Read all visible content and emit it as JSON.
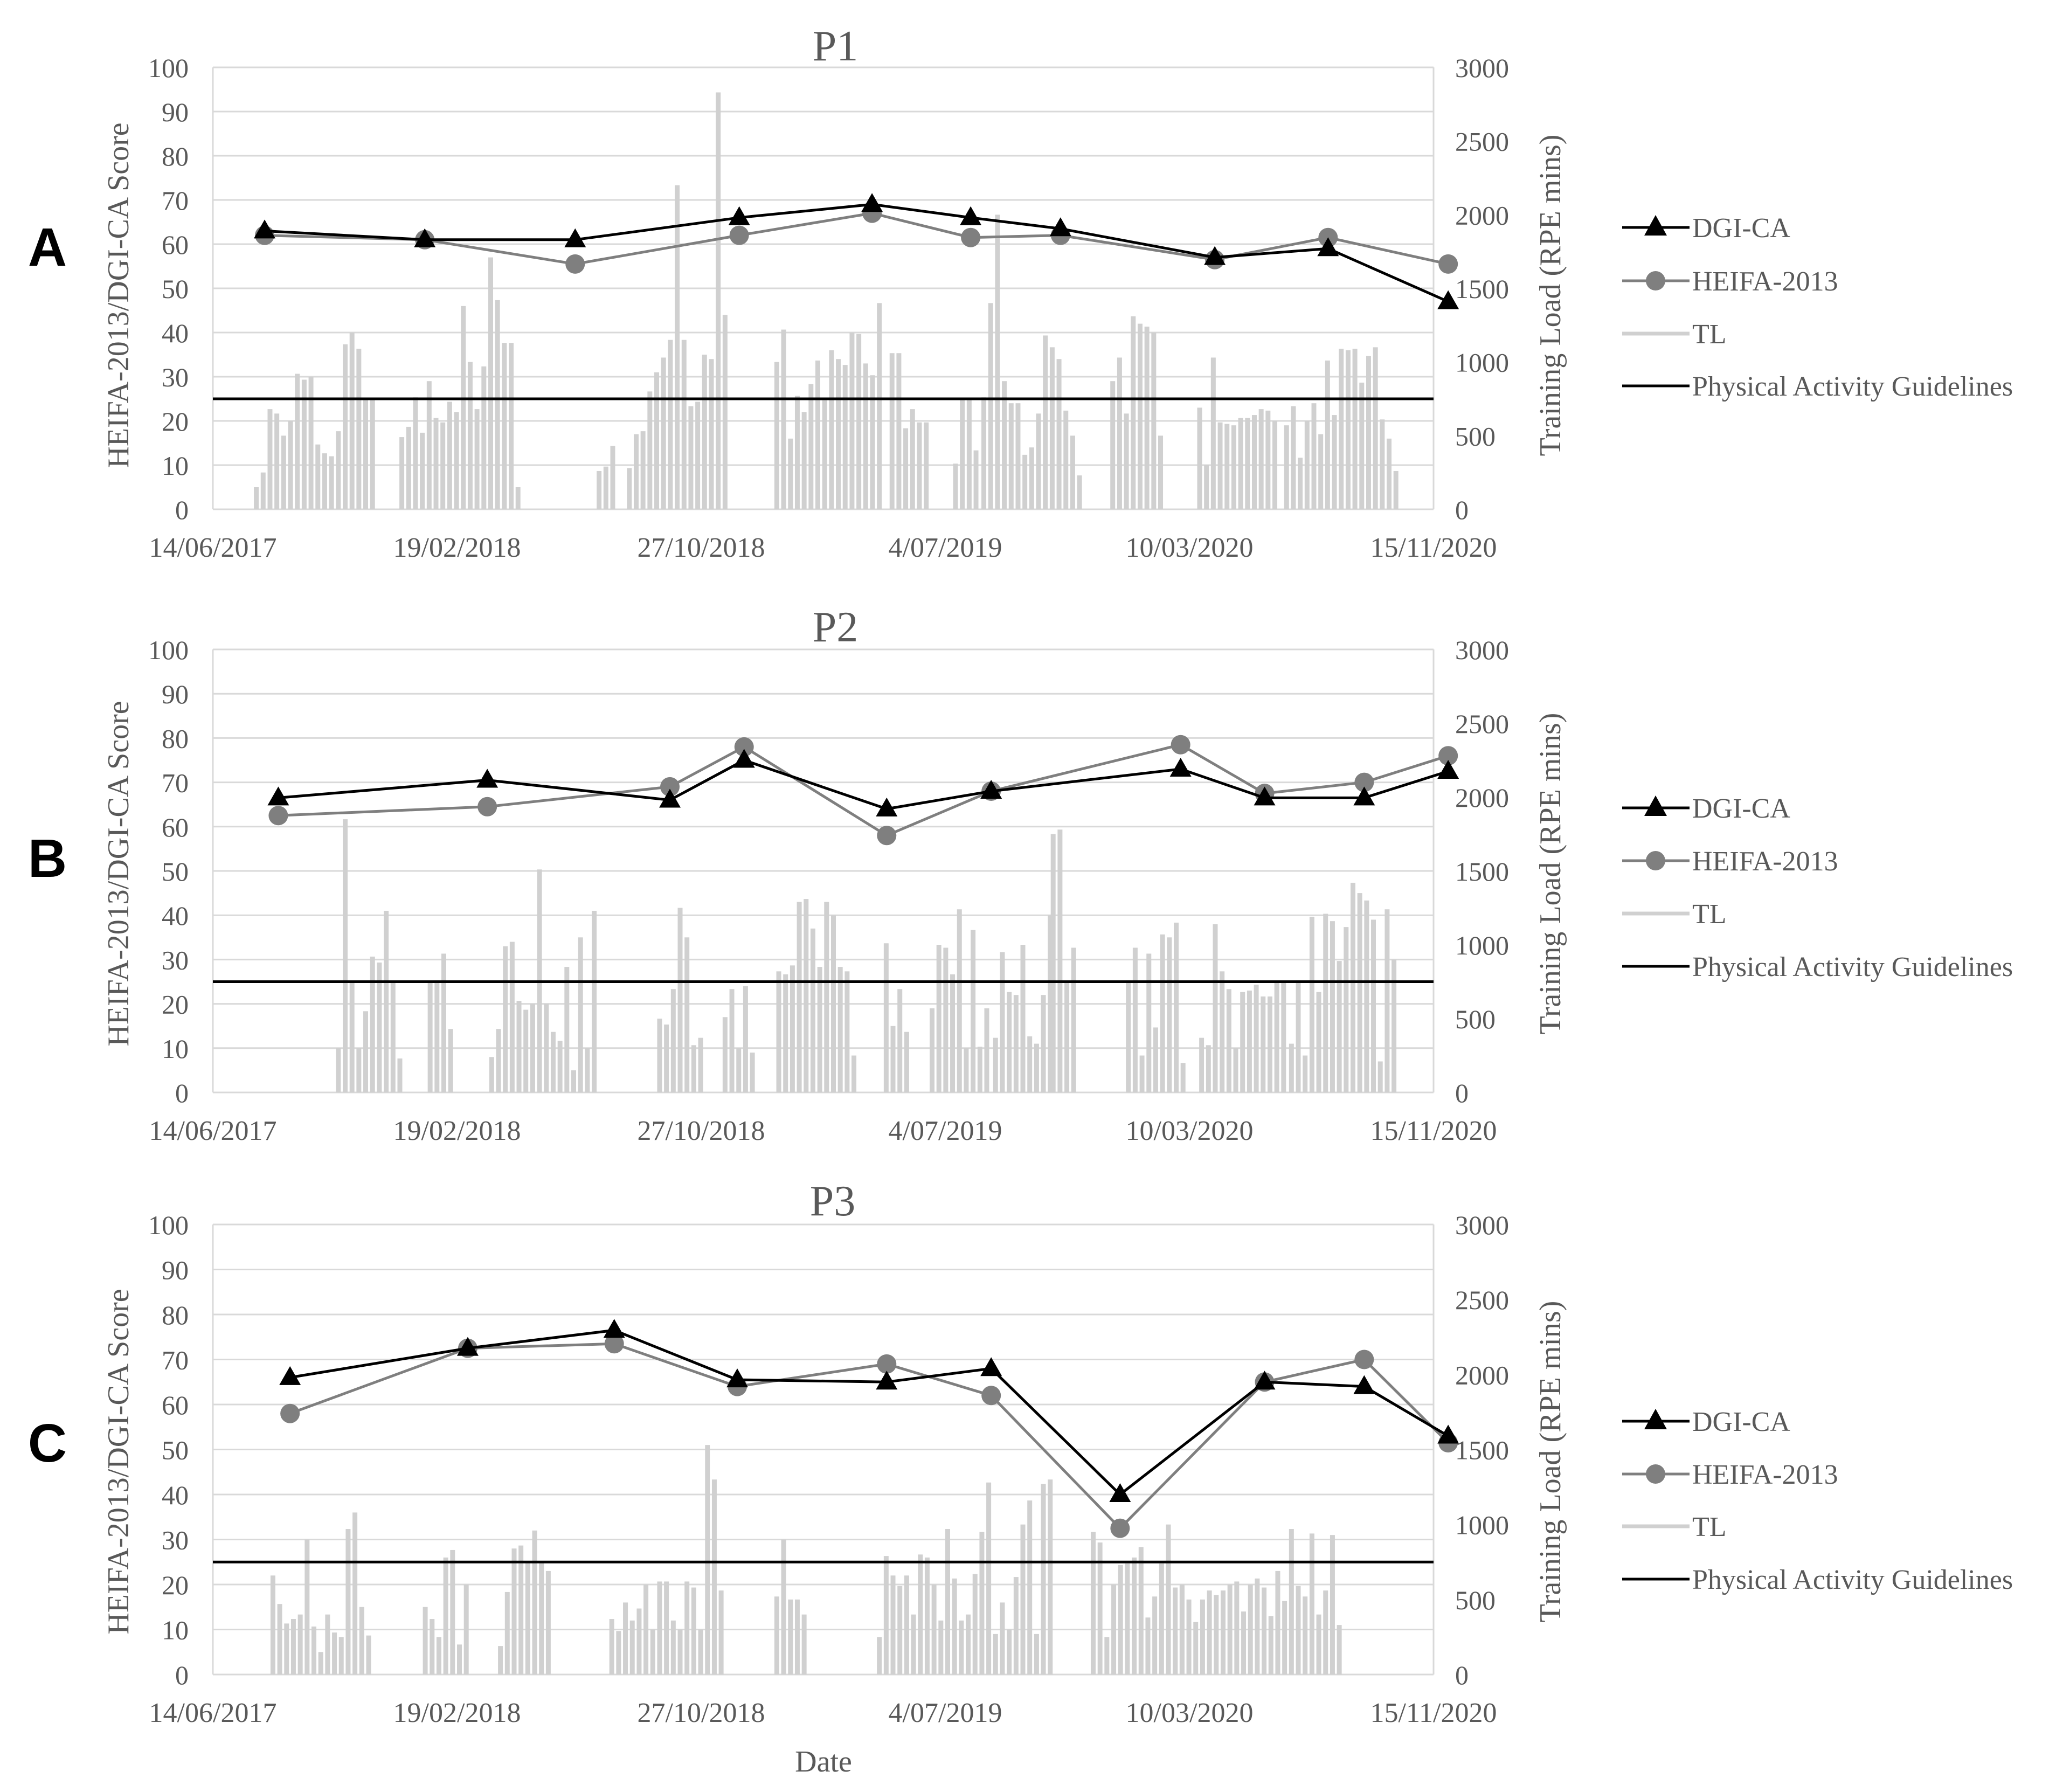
{
  "x_labels": [
    "14/06/2017",
    "19/02/2018",
    "27/10/2018",
    "4/07/2019",
    "10/03/2020",
    "15/11/2020"
  ],
  "y_left_label": "HEIFA-2013/DGI-CA Score",
  "y_right_label": "Training Load (RPE mins)",
  "x_axis_title": "Date",
  "legend": {
    "dgi": "DGI-CA",
    "heifa": "HEIFA-2013",
    "tl": "TL",
    "pa": "Physical Activity Guidelines"
  },
  "colors": {
    "dgi": "#000000",
    "heifa": "#7f7f7f",
    "tl": "#d0d0d0",
    "pa": "#000000",
    "grid": "#d9d9d9",
    "axis_text": "#595959"
  },
  "chart_data": [
    {
      "type": "line",
      "panel": "A",
      "title": "P1",
      "x_axis": "date",
      "xlim": [
        "14/06/2017",
        "15/11/2020"
      ],
      "ylim_left": [
        0,
        100
      ],
      "ylim_right": [
        0,
        3000
      ],
      "y_ticks_left": [
        0,
        10,
        20,
        30,
        40,
        50,
        60,
        70,
        80,
        90,
        100
      ],
      "y_ticks_right": [
        0,
        500,
        1000,
        1500,
        2000,
        2500,
        3000
      ],
      "grid": true,
      "legend_position": "right",
      "physical_activity_guideline": 750,
      "series": [
        {
          "name": "DGI-CA",
          "axis": "left",
          "marker": "triangle",
          "points": [
            [
              "2017-08-06",
              63
            ],
            [
              "2018-01-17",
              61
            ],
            [
              "2018-06-20",
              61
            ],
            [
              "2018-12-05",
              66
            ],
            [
              "2019-04-20",
              69
            ],
            [
              "2019-07-30",
              66
            ],
            [
              "2019-10-30",
              63.5
            ],
            [
              "2020-04-05",
              57
            ],
            [
              "2020-07-30",
              59
            ],
            [
              "2020-11-30",
              47
            ]
          ]
        },
        {
          "name": "HEIFA-2013",
          "axis": "left",
          "marker": "circle",
          "points": [
            [
              "2017-08-06",
              62
            ],
            [
              "2018-01-17",
              61
            ],
            [
              "2018-06-20",
              55.5
            ],
            [
              "2018-12-05",
              62
            ],
            [
              "2019-04-20",
              67
            ],
            [
              "2019-07-30",
              61.5
            ],
            [
              "2019-10-30",
              62
            ],
            [
              "2020-04-05",
              56.5
            ],
            [
              "2020-07-30",
              61.5
            ],
            [
              "2020-11-30",
              55.5
            ]
          ]
        },
        {
          "name": "TL",
          "axis": "right",
          "type": "bar",
          "segments": [
            {
              "start": "2017-07-26",
              "values": [
                150,
                250,
                680,
                650,
                500,
                600,
                920,
                880,
                900,
                440,
                380,
                360,
                530,
                1120,
                1200,
                1090,
                750,
                750
              ]
            },
            {
              "start": "2017-12-22",
              "values": [
                490,
                560,
                760,
                520,
                870,
                620,
                590,
                730,
                660,
                1380,
                1000,
                680,
                970,
                1710,
                1420,
                1130,
                1130,
                150
              ]
            },
            {
              "start": "2018-07-12",
              "values": [
                260,
                290,
                430
              ]
            },
            {
              "start": "2018-08-12",
              "values": [
                280,
                510,
                530,
                800,
                930,
                1030,
                1150,
                2200,
                1150,
                700,
                730,
                1050,
                1020,
                2830,
                1320
              ]
            },
            {
              "start": "2019-01-10",
              "values": [
                1000,
                1220,
                480,
                770,
                660,
                850,
                1010,
                740,
                1080,
                1020,
                980,
                1200,
                1190,
                990,
                910,
                1400
              ]
            },
            {
              "start": "2019-05-08",
              "values": [
                1060,
                1060,
                550,
                680,
                590,
                590
              ]
            },
            {
              "start": "2019-07-12",
              "values": [
                310,
                750,
                750,
                400
              ]
            },
            {
              "start": "2019-08-10",
              "values": [
                760,
                1400,
                2000,
                870,
                720,
                720,
                370,
                420,
                650,
                1180,
                1100,
                1020,
                670,
                500,
                230
              ]
            },
            {
              "start": "2019-12-20",
              "values": [
                870,
                1030,
                650,
                1310,
                1260,
                1240,
                1200,
                500
              ]
            },
            {
              "start": "2020-03-18",
              "values": [
                690,
                300,
                1030,
                590,
                580,
                570,
                620,
                620,
                640,
                680,
                670,
                600
              ]
            },
            {
              "start": "2020-06-15",
              "values": [
                570,
                700,
                350,
                600,
                720,
                510,
                1010,
                640,
                1090,
                1080,
                1090,
                860,
                1040,
                1100,
                610,
                480,
                260
              ]
            }
          ]
        }
      ]
    },
    {
      "type": "line",
      "panel": "B",
      "title": "P2",
      "x_axis": "date",
      "xlim": [
        "14/06/2017",
        "15/11/2020"
      ],
      "ylim_left": [
        0,
        100
      ],
      "ylim_right": [
        0,
        3000
      ],
      "y_ticks_left": [
        0,
        10,
        20,
        30,
        40,
        50,
        60,
        70,
        80,
        90,
        100
      ],
      "y_ticks_right": [
        0,
        500,
        1000,
        1500,
        2000,
        2500,
        3000
      ],
      "grid": true,
      "legend_position": "right",
      "physical_activity_guideline": 750,
      "series": [
        {
          "name": "DGI-CA",
          "axis": "left",
          "marker": "triangle",
          "points": [
            [
              "2017-08-20",
              66.5
            ],
            [
              "2018-03-22",
              70.5
            ],
            [
              "2018-09-25",
              66
            ],
            [
              "2018-12-10",
              75
            ],
            [
              "2019-05-05",
              64
            ],
            [
              "2019-08-20",
              68
            ],
            [
              "2020-03-01",
              73
            ],
            [
              "2020-05-26",
              66.5
            ],
            [
              "2020-09-05",
              66.5
            ],
            [
              "2020-11-30",
              72.5
            ]
          ]
        },
        {
          "name": "HEIFA-2013",
          "axis": "left",
          "marker": "circle",
          "points": [
            [
              "2017-08-20",
              62.5
            ],
            [
              "2018-03-22",
              64.5
            ],
            [
              "2018-09-25",
              69
            ],
            [
              "2018-12-10",
              78
            ],
            [
              "2019-05-05",
              58
            ],
            [
              "2019-08-20",
              68
            ],
            [
              "2020-03-01",
              78.5
            ],
            [
              "2020-05-26",
              67.5
            ],
            [
              "2020-09-05",
              70
            ],
            [
              "2020-11-30",
              76
            ]
          ]
        },
        {
          "name": "TL",
          "axis": "right",
          "type": "bar",
          "segments": [
            {
              "start": "2017-10-18",
              "values": [
                300,
                1850,
                750,
                300,
                550,
                920,
                880,
                1230,
                750,
                230
              ]
            },
            {
              "start": "2018-01-20",
              "values": [
                750,
                760,
                940,
                430
              ]
            },
            {
              "start": "2018-03-24",
              "values": [
                240,
                430,
                990,
                1020,
                620,
                560,
                600,
                1510,
                600,
                410,
                350,
                850,
                150,
                1050,
                300,
                1230
              ]
            },
            {
              "start": "2018-09-12",
              "values": [
                500,
                460,
                700,
                1250,
                1050,
                320,
                370
              ]
            },
            {
              "start": "2018-11-18",
              "values": [
                510,
                700,
                300,
                720,
                270
              ]
            },
            {
              "start": "2019-01-12",
              "values": [
                820,
                800,
                860,
                1290,
                1310,
                1110,
                850,
                1290,
                1200,
                850,
                820,
                250
              ]
            },
            {
              "start": "2019-05-02",
              "values": [
                1010,
                450,
                700,
                410
              ]
            },
            {
              "start": "2019-06-18",
              "values": [
                570,
                1000,
                980,
                800,
                1240,
                300,
                1100,
                310,
                570
              ]
            },
            {
              "start": "2019-08-22",
              "values": [
                370,
                950,
                680,
                660,
                1000,
                380,
                330,
                660,
                1200
              ]
            },
            {
              "start": "2019-10-20",
              "values": [
                1750,
                1780,
                750,
                980
              ]
            },
            {
              "start": "2020-01-05",
              "values": [
                760,
                980,
                250,
                940,
                440,
                1070,
                1050,
                1150,
                200
              ]
            },
            {
              "start": "2020-03-20",
              "values": [
                370,
                320,
                1140,
                820,
                700,
                300,
                680,
                690,
                730,
                650,
                650,
                750,
                750
              ]
            },
            {
              "start": "2020-06-20",
              "values": [
                330,
                760,
                250,
                1190,
                680,
                1210,
                1160,
                890,
                1120,
                1420,
                1350,
                1300,
                1170,
                210,
                1240,
                900
              ]
            }
          ]
        }
      ]
    },
    {
      "type": "line",
      "panel": "C",
      "title": "P3",
      "x_axis": "date",
      "xlim": [
        "14/06/2017",
        "15/11/2020"
      ],
      "ylim_left": [
        0,
        100
      ],
      "ylim_right": [
        0,
        3000
      ],
      "y_ticks_left": [
        0,
        10,
        20,
        30,
        40,
        50,
        60,
        70,
        80,
        90,
        100
      ],
      "y_ticks_right": [
        0,
        500,
        1000,
        1500,
        2000,
        2500,
        3000
      ],
      "grid": true,
      "legend_position": "right",
      "physical_activity_guideline": 750,
      "series": [
        {
          "name": "DGI-CA",
          "axis": "left",
          "marker": "triangle",
          "points": [
            [
              "2017-09-01",
              66
            ],
            [
              "2018-03-02",
              72.5
            ],
            [
              "2018-07-30",
              76.5
            ],
            [
              "2018-12-03",
              65.5
            ],
            [
              "2019-05-05",
              65
            ],
            [
              "2019-08-20",
              68
            ],
            [
              "2019-12-30",
              40
            ],
            [
              "2020-05-26",
              65
            ],
            [
              "2020-09-05",
              64
            ],
            [
              "2020-11-30",
              53
            ]
          ]
        },
        {
          "name": "HEIFA-2013",
          "axis": "left",
          "marker": "circle",
          "points": [
            [
              "2017-09-01",
              58
            ],
            [
              "2018-03-02",
              72.5
            ],
            [
              "2018-07-30",
              73.5
            ],
            [
              "2018-12-03",
              64
            ],
            [
              "2019-05-05",
              69
            ],
            [
              "2019-08-20",
              62
            ],
            [
              "2019-12-30",
              32.5
            ],
            [
              "2020-05-26",
              65
            ],
            [
              "2020-09-05",
              70
            ],
            [
              "2020-11-30",
              51.5
            ]
          ]
        },
        {
          "name": "TL",
          "axis": "right",
          "type": "bar",
          "segments": [
            {
              "start": "2017-08-12",
              "values": [
                660,
                470,
                340,
                370,
                400,
                900,
                320,
                150,
                400,
                280,
                250,
                970,
                1080,
                450,
                260
              ]
            },
            {
              "start": "2018-01-15",
              "values": [
                450,
                370,
                250,
                780,
                830,
                200,
                600
              ]
            },
            {
              "start": "2018-04-02",
              "values": [
                190,
                550,
                840,
                860,
                750,
                960,
                750,
                690
              ]
            },
            {
              "start": "2018-07-25",
              "values": [
                370,
                290,
                480,
                360,
                440,
                600,
                300,
                620,
                620,
                360,
                300,
                620,
                580,
                300,
                1530,
                1300,
                560
              ]
            },
            {
              "start": "2019-01-10",
              "values": [
                520,
                900,
                500,
                500,
                400
              ]
            },
            {
              "start": "2019-04-25",
              "values": [
                250,
                790,
                660,
                590,
                660,
                400,
                800,
                780,
                600,
                360,
                970,
                640,
                360,
                400,
                670,
                950,
                1280,
                270,
                480,
                300,
                650,
                1000,
                1160,
                270,
                1270,
                1300
              ]
            },
            {
              "start": "2019-11-30",
              "values": [
                950,
                880,
                250,
                600,
                730,
                740,
                780,
                850,
                380,
                520,
                740,
                1000,
                260,
                590
              ]
            },
            {
              "start": "2020-02-15",
              "values": [
                750,
                580,
                600,
                500,
                350,
                500,
                560,
                530,
                560,
                600,
                620,
                420,
                600,
                640,
                580,
                390,
                690,
                490,
                970,
                590,
                520,
                940,
                400,
                560,
                930,
                330
              ]
            }
          ]
        }
      ]
    }
  ],
  "panels": [
    {
      "letter": "A",
      "title": "P1"
    },
    {
      "letter": "B",
      "title": "P2"
    },
    {
      "letter": "C",
      "title": "P3"
    }
  ]
}
